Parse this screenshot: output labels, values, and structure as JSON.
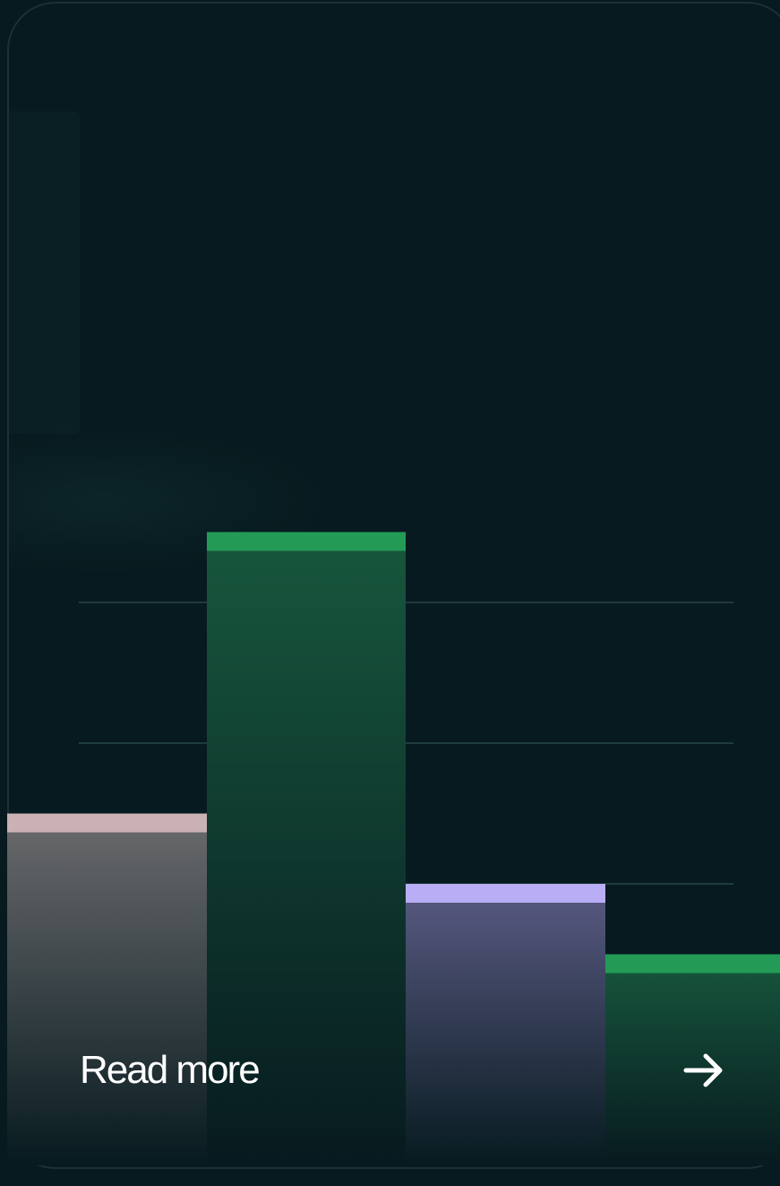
{
  "card": {
    "link_label": "Read more",
    "arrow_icon": "arrow-right-icon"
  },
  "colors": {
    "background": "#071a1f",
    "gridline": "#1f3a3d",
    "text": "#ffffff"
  },
  "chart_data": {
    "type": "bar",
    "grid": true,
    "gridlines": [
      1,
      2,
      3,
      4
    ],
    "values": [
      2.5,
      4.5,
      2.0,
      1.5
    ],
    "ylim": [
      0,
      7.2
    ],
    "bars": [
      {
        "cap": "#c9b1b4",
        "top": "#6b6b6d",
        "bottom": "#071a1f"
      },
      {
        "cap": "#239b56",
        "top": "#17573d",
        "bottom": "#071a1f"
      },
      {
        "cap": "#b9aef5",
        "top": "#5a5b83",
        "bottom": "#071a1f"
      },
      {
        "cap": "#239b56",
        "top": "#17573d",
        "bottom": "#071a1f"
      }
    ]
  }
}
